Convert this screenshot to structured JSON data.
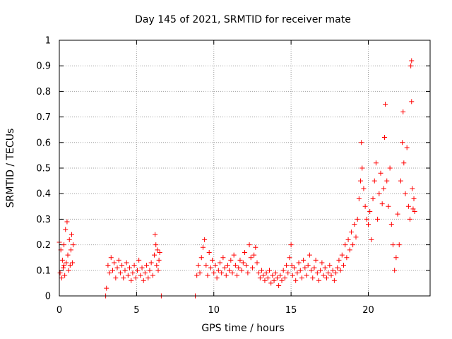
{
  "chart_data": {
    "type": "scatter",
    "title": "Day 145 of 2021, SRMTID for receiver mate",
    "xlabel": "GPS time / hours",
    "ylabel": "SRMTID / TECUs",
    "xlim": [
      0,
      24
    ],
    "ylim": [
      0,
      1
    ],
    "xticks": [
      0,
      5,
      10,
      15,
      20
    ],
    "xtick_labels": [
      "0",
      "5",
      "10",
      "15",
      "20"
    ],
    "yticks": [
      0,
      0.1,
      0.2,
      0.3,
      0.4,
      0.5,
      0.6,
      0.7,
      0.8,
      0.9,
      1
    ],
    "ytick_labels": [
      "0",
      "0.1",
      "0.2",
      "0.3",
      "0.4",
      "0.5",
      "0.6",
      "0.7",
      "0.8",
      "0.9",
      "1"
    ],
    "grid": true,
    "marker": "+",
    "color": "#ff0000",
    "series": [
      {
        "name": "SRMTID",
        "points": [
          [
            0.0,
            0.21
          ],
          [
            0.05,
            0.09
          ],
          [
            0.1,
            0.18
          ],
          [
            0.15,
            0.07
          ],
          [
            0.2,
            0.14
          ],
          [
            0.25,
            0.11
          ],
          [
            0.3,
            0.2
          ],
          [
            0.35,
            0.08
          ],
          [
            0.4,
            0.26
          ],
          [
            0.45,
            0.13
          ],
          [
            0.5,
            0.29
          ],
          [
            0.55,
            0.16
          ],
          [
            0.6,
            0.1
          ],
          [
            0.65,
            0.22
          ],
          [
            0.7,
            0.12
          ],
          [
            0.75,
            0.18
          ],
          [
            0.8,
            0.24
          ],
          [
            0.85,
            0.13
          ],
          [
            0.9,
            0.2
          ],
          [
            0.3,
            0.12
          ],
          [
            3.0,
            0.0
          ],
          [
            3.05,
            0.03
          ],
          [
            3.15,
            0.12
          ],
          [
            3.25,
            0.09
          ],
          [
            3.35,
            0.15
          ],
          [
            3.45,
            0.1
          ],
          [
            3.55,
            0.13
          ],
          [
            3.65,
            0.07
          ],
          [
            3.75,
            0.11
          ],
          [
            3.85,
            0.14
          ],
          [
            3.95,
            0.09
          ],
          [
            4.05,
            0.12
          ],
          [
            4.15,
            0.07
          ],
          [
            4.25,
            0.1
          ],
          [
            4.35,
            0.13
          ],
          [
            4.45,
            0.08
          ],
          [
            4.55,
            0.11
          ],
          [
            4.65,
            0.06
          ],
          [
            4.75,
            0.09
          ],
          [
            4.85,
            0.12
          ],
          [
            4.95,
            0.07
          ],
          [
            5.05,
            0.1
          ],
          [
            5.15,
            0.14
          ],
          [
            5.25,
            0.08
          ],
          [
            5.35,
            0.11
          ],
          [
            5.45,
            0.06
          ],
          [
            5.55,
            0.09
          ],
          [
            5.65,
            0.12
          ],
          [
            5.75,
            0.07
          ],
          [
            5.85,
            0.1
          ],
          [
            5.95,
            0.13
          ],
          [
            6.05,
            0.08
          ],
          [
            6.15,
            0.16
          ],
          [
            6.2,
            0.24
          ],
          [
            6.25,
            0.2
          ],
          [
            6.3,
            0.12
          ],
          [
            6.35,
            0.18
          ],
          [
            6.4,
            0.1
          ],
          [
            6.45,
            0.14
          ],
          [
            6.5,
            0.17
          ],
          [
            6.6,
            0.0
          ],
          [
            8.8,
            0.0
          ],
          [
            8.9,
            0.08
          ],
          [
            9.0,
            0.12
          ],
          [
            9.1,
            0.09
          ],
          [
            9.2,
            0.15
          ],
          [
            9.3,
            0.19
          ],
          [
            9.4,
            0.22
          ],
          [
            9.5,
            0.12
          ],
          [
            9.6,
            0.08
          ],
          [
            9.7,
            0.17
          ],
          [
            9.8,
            0.11
          ],
          [
            9.9,
            0.14
          ],
          [
            10.0,
            0.09
          ],
          [
            10.1,
            0.12
          ],
          [
            10.2,
            0.07
          ],
          [
            10.3,
            0.1
          ],
          [
            10.4,
            0.13
          ],
          [
            10.5,
            0.09
          ],
          [
            10.6,
            0.15
          ],
          [
            10.7,
            0.11
          ],
          [
            10.8,
            0.08
          ],
          [
            10.9,
            0.12
          ],
          [
            11.0,
            0.1
          ],
          [
            11.1,
            0.14
          ],
          [
            11.2,
            0.09
          ],
          [
            11.3,
            0.16
          ],
          [
            11.4,
            0.12
          ],
          [
            11.5,
            0.08
          ],
          [
            11.6,
            0.11
          ],
          [
            11.7,
            0.14
          ],
          [
            11.8,
            0.1
          ],
          [
            11.9,
            0.13
          ],
          [
            12.0,
            0.17
          ],
          [
            12.1,
            0.12
          ],
          [
            12.2,
            0.09
          ],
          [
            12.3,
            0.2
          ],
          [
            12.4,
            0.15
          ],
          [
            12.5,
            0.11
          ],
          [
            12.6,
            0.16
          ],
          [
            12.7,
            0.19
          ],
          [
            12.8,
            0.13
          ],
          [
            12.9,
            0.09
          ],
          [
            13.0,
            0.07
          ],
          [
            13.1,
            0.1
          ],
          [
            13.2,
            0.08
          ],
          [
            13.3,
            0.06
          ],
          [
            13.4,
            0.09
          ],
          [
            13.5,
            0.07
          ],
          [
            13.6,
            0.1
          ],
          [
            13.7,
            0.05
          ],
          [
            13.8,
            0.08
          ],
          [
            13.9,
            0.06
          ],
          [
            14.0,
            0.09
          ],
          [
            14.1,
            0.07
          ],
          [
            14.2,
            0.04
          ],
          [
            14.3,
            0.08
          ],
          [
            14.4,
            0.06
          ],
          [
            14.5,
            0.1
          ],
          [
            14.6,
            0.07
          ],
          [
            14.7,
            0.12
          ],
          [
            14.8,
            0.09
          ],
          [
            14.9,
            0.15
          ],
          [
            15.0,
            0.2
          ],
          [
            15.05,
            0.12
          ],
          [
            15.1,
            0.08
          ],
          [
            15.2,
            0.11
          ],
          [
            15.3,
            0.06
          ],
          [
            15.4,
            0.09
          ],
          [
            15.5,
            0.13
          ],
          [
            15.6,
            0.1
          ],
          [
            15.7,
            0.07
          ],
          [
            15.8,
            0.14
          ],
          [
            15.9,
            0.11
          ],
          [
            16.0,
            0.08
          ],
          [
            16.1,
            0.12
          ],
          [
            16.2,
            0.16
          ],
          [
            16.3,
            0.1
          ],
          [
            16.4,
            0.07
          ],
          [
            16.5,
            0.11
          ],
          [
            16.6,
            0.14
          ],
          [
            16.7,
            0.09
          ],
          [
            16.8,
            0.06
          ],
          [
            16.9,
            0.1
          ],
          [
            17.0,
            0.13
          ],
          [
            17.1,
            0.08
          ],
          [
            17.2,
            0.11
          ],
          [
            17.3,
            0.07
          ],
          [
            17.4,
            0.09
          ],
          [
            17.5,
            0.12
          ],
          [
            17.6,
            0.08
          ],
          [
            17.7,
            0.1
          ],
          [
            17.8,
            0.06
          ],
          [
            17.9,
            0.09
          ],
          [
            18.0,
            0.11
          ],
          [
            18.1,
            0.14
          ],
          [
            18.2,
            0.1
          ],
          [
            18.3,
            0.16
          ],
          [
            18.4,
            0.12
          ],
          [
            18.5,
            0.2
          ],
          [
            18.6,
            0.15
          ],
          [
            18.7,
            0.22
          ],
          [
            18.8,
            0.18
          ],
          [
            18.9,
            0.25
          ],
          [
            19.0,
            0.2
          ],
          [
            19.1,
            0.28
          ],
          [
            19.2,
            0.23
          ],
          [
            19.3,
            0.3
          ],
          [
            19.4,
            0.38
          ],
          [
            19.5,
            0.45
          ],
          [
            19.55,
            0.6
          ],
          [
            19.6,
            0.5
          ],
          [
            19.7,
            0.42
          ],
          [
            19.8,
            0.35
          ],
          [
            19.9,
            0.3
          ],
          [
            20.0,
            0.28
          ],
          [
            20.1,
            0.33
          ],
          [
            20.2,
            0.22
          ],
          [
            20.3,
            0.38
          ],
          [
            20.4,
            0.45
          ],
          [
            20.5,
            0.52
          ],
          [
            20.6,
            0.3
          ],
          [
            20.7,
            0.4
          ],
          [
            20.8,
            0.48
          ],
          [
            20.9,
            0.36
          ],
          [
            21.0,
            0.42
          ],
          [
            21.05,
            0.62
          ],
          [
            21.1,
            0.75
          ],
          [
            21.2,
            0.45
          ],
          [
            21.3,
            0.35
          ],
          [
            21.4,
            0.5
          ],
          [
            21.5,
            0.28
          ],
          [
            21.6,
            0.2
          ],
          [
            21.7,
            0.1
          ],
          [
            21.8,
            0.15
          ],
          [
            21.9,
            0.32
          ],
          [
            22.0,
            0.2
          ],
          [
            22.1,
            0.45
          ],
          [
            22.2,
            0.6
          ],
          [
            22.25,
            0.72
          ],
          [
            22.3,
            0.52
          ],
          [
            22.4,
            0.4
          ],
          [
            22.5,
            0.58
          ],
          [
            22.6,
            0.35
          ],
          [
            22.7,
            0.3
          ],
          [
            22.75,
            0.9
          ],
          [
            22.8,
            0.76
          ],
          [
            22.85,
            0.42
          ],
          [
            22.9,
            0.34
          ],
          [
            22.95,
            0.38
          ],
          [
            23.0,
            0.33
          ],
          [
            22.8,
            0.92
          ]
        ]
      }
    ]
  }
}
